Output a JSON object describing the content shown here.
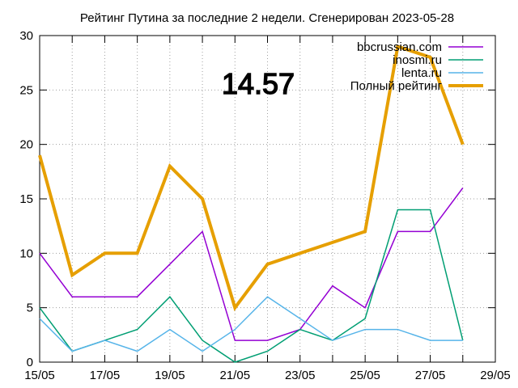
{
  "chart_data": {
    "type": "line",
    "title": "Рейтинг Путина за последние 2 недели. Сгенерирован 2023-05-28",
    "annotation": "14.57",
    "x_ticks": [
      "15/05",
      "17/05",
      "19/05",
      "21/05",
      "23/05",
      "25/05",
      "27/05",
      "29/05"
    ],
    "x": [
      "15/05",
      "16/05",
      "17/05",
      "18/05",
      "19/05",
      "20/05",
      "21/05",
      "22/05",
      "23/05",
      "24/05",
      "25/05",
      "26/05",
      "27/05",
      "28/05"
    ],
    "xlim": [
      "15/05",
      "29/05"
    ],
    "ylim": [
      0,
      30
    ],
    "y_ticks": [
      0,
      5,
      10,
      15,
      20,
      25,
      30
    ],
    "grid": true,
    "legend_position": "top-right",
    "series": [
      {
        "name": "bbcrussian.com",
        "color": "#9400d3",
        "values": [
          10,
          6,
          6,
          6,
          9,
          12,
          2,
          2,
          3,
          7,
          5,
          12,
          12,
          16
        ]
      },
      {
        "name": "inosmi.ru",
        "color": "#009e73",
        "values": [
          5,
          1,
          2,
          3,
          6,
          2,
          0,
          1,
          3,
          2,
          4,
          14,
          14,
          2
        ]
      },
      {
        "name": "lenta.ru",
        "color": "#56b4e9",
        "values": [
          4,
          1,
          2,
          1,
          3,
          1,
          3,
          6,
          4,
          2,
          3,
          3,
          2,
          2
        ]
      },
      {
        "name": "Полный рейтинг",
        "color": "#e69f00",
        "values": [
          19,
          8,
          10,
          10,
          18,
          15,
          5,
          9,
          10,
          11,
          12,
          29,
          28,
          20
        ]
      }
    ]
  }
}
